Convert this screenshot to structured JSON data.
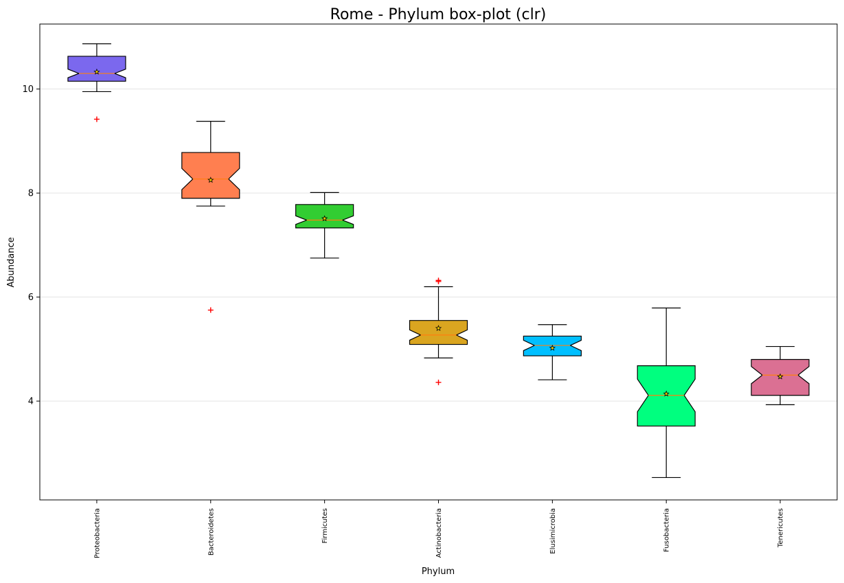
{
  "chart_data": {
    "type": "boxplot",
    "title": "Rome - Phylum box-plot (clr)",
    "xlabel": "Phylum",
    "ylabel": "Abundance",
    "ylim": [
      2.1,
      11.25
    ],
    "yticks": [
      4,
      6,
      8,
      10
    ],
    "grid": "horizontal",
    "notched": true,
    "categories": [
      "Proteobacteria",
      "Bacteroidetes",
      "Firmicutes",
      "Actinobacteria",
      "Elusimicrobia",
      "Fusobacteria",
      "Tenericutes"
    ],
    "boxes": [
      {
        "category": "Proteobacteria",
        "whisker_low": 9.95,
        "q1": 10.15,
        "median": 10.3,
        "q3": 10.63,
        "whisker_high": 10.87,
        "mean": 10.33,
        "outliers": [
          9.42
        ],
        "color": "#7B68EE"
      },
      {
        "category": "Bacteroidetes",
        "whisker_low": 7.75,
        "q1": 7.9,
        "median": 8.27,
        "q3": 8.78,
        "whisker_high": 9.38,
        "mean": 8.25,
        "outliers": [
          5.75
        ],
        "color": "#FF7F50"
      },
      {
        "category": "Firmicutes",
        "whisker_low": 6.75,
        "q1": 7.33,
        "median": 7.48,
        "q3": 7.78,
        "whisker_high": 8.01,
        "mean": 7.51,
        "outliers": [],
        "color": "#32CD32"
      },
      {
        "category": "Actinobacteria",
        "whisker_low": 4.83,
        "q1": 5.09,
        "median": 5.27,
        "q3": 5.55,
        "whisker_high": 6.2,
        "mean": 5.4,
        "outliers": [
          6.3,
          6.32,
          4.36
        ],
        "color": "#DAA520"
      },
      {
        "category": "Elusimicrobia",
        "whisker_low": 4.41,
        "q1": 4.87,
        "median": 5.07,
        "q3": 5.25,
        "whisker_high": 5.47,
        "mean": 5.02,
        "outliers": [],
        "color": "#00BFFF"
      },
      {
        "category": "Fusobacteria",
        "whisker_low": 2.53,
        "q1": 3.52,
        "median": 4.11,
        "q3": 4.68,
        "whisker_high": 5.79,
        "mean": 4.14,
        "outliers": [],
        "color": "#00FF7F"
      },
      {
        "category": "Tenericutes",
        "whisker_low": 3.93,
        "q1": 4.11,
        "median": 4.5,
        "q3": 4.8,
        "whisker_high": 5.05,
        "mean": 4.47,
        "outliers": [],
        "color": "#DB7093"
      }
    ]
  }
}
